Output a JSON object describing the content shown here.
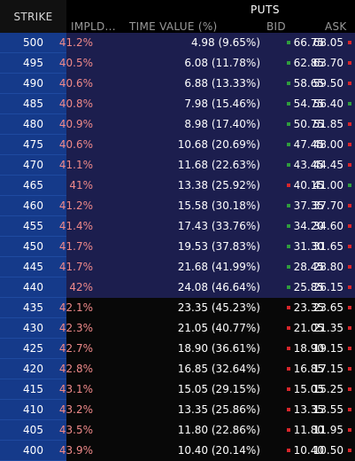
{
  "header": {
    "strike_label": "STRIKE",
    "puts_label": "PUTS",
    "columns": {
      "impld": "IMPLD...",
      "time_value": "TIME VALUE (%)",
      "bid": "BID",
      "ask": "ASK"
    }
  },
  "colors": {
    "strike_bg": "#153a8a",
    "itm_bg": "#1c1e4e",
    "otm_bg": "#080808",
    "iv_text": "#f08a8a",
    "up": "#2f9d3d",
    "down": "#d8262b"
  },
  "rows": [
    {
      "strike": "500",
      "iv": "41.2%",
      "tv": "4.98 (9.65%)",
      "bid": "66.75",
      "ask": "68.05",
      "bid_dir": "up",
      "ask_dir": "down",
      "zone": "itm"
    },
    {
      "strike": "495",
      "iv": "40.5%",
      "tv": "6.08 (11.78%)",
      "bid": "62.85",
      "ask": "63.70",
      "bid_dir": "up",
      "ask_dir": "down",
      "zone": "itm"
    },
    {
      "strike": "490",
      "iv": "40.6%",
      "tv": "6.88 (13.33%)",
      "bid": "58.65",
      "ask": "59.50",
      "bid_dir": "up",
      "ask_dir": "down",
      "zone": "itm"
    },
    {
      "strike": "485",
      "iv": "40.8%",
      "tv": "7.98 (15.46%)",
      "bid": "54.75",
      "ask": "56.40",
      "bid_dir": "up",
      "ask_dir": "up",
      "zone": "itm"
    },
    {
      "strike": "480",
      "iv": "40.9%",
      "tv": "8.98 (17.40%)",
      "bid": "50.75",
      "ask": "51.85",
      "bid_dir": "up",
      "ask_dir": "down",
      "zone": "itm"
    },
    {
      "strike": "475",
      "iv": "40.6%",
      "tv": "10.68 (20.69%)",
      "bid": "47.45",
      "ask": "48.00",
      "bid_dir": "up",
      "ask_dir": "down",
      "zone": "itm"
    },
    {
      "strike": "470",
      "iv": "41.1%",
      "tv": "11.68 (22.63%)",
      "bid": "43.45",
      "ask": "44.45",
      "bid_dir": "up",
      "ask_dir": "down",
      "zone": "itm"
    },
    {
      "strike": "465",
      "iv": "41%",
      "tv": "13.38 (25.92%)",
      "bid": "40.15",
      "ask": "41.00",
      "bid_dir": "down",
      "ask_dir": "up",
      "zone": "itm"
    },
    {
      "strike": "460",
      "iv": "41.2%",
      "tv": "15.58 (30.18%)",
      "bid": "37.35",
      "ask": "37.70",
      "bid_dir": "up",
      "ask_dir": "down",
      "zone": "itm"
    },
    {
      "strike": "455",
      "iv": "41.4%",
      "tv": "17.43 (33.76%)",
      "bid": "34.20",
      "ask": "34.60",
      "bid_dir": "up",
      "ask_dir": "down",
      "zone": "itm"
    },
    {
      "strike": "450",
      "iv": "41.7%",
      "tv": "19.53 (37.83%)",
      "bid": "31.30",
      "ask": "31.65",
      "bid_dir": "up",
      "ask_dir": "down",
      "zone": "itm"
    },
    {
      "strike": "445",
      "iv": "41.7%",
      "tv": "21.68 (41.99%)",
      "bid": "28.45",
      "ask": "28.80",
      "bid_dir": "up",
      "ask_dir": "down",
      "zone": "itm"
    },
    {
      "strike": "440",
      "iv": "42%",
      "tv": "24.08 (46.64%)",
      "bid": "25.85",
      "ask": "26.15",
      "bid_dir": "up",
      "ask_dir": "down",
      "zone": "itm"
    },
    {
      "strike": "435",
      "iv": "42.1%",
      "tv": "23.35 (45.23%)",
      "bid": "23.35",
      "ask": "23.65",
      "bid_dir": "down",
      "ask_dir": "down",
      "zone": "otm"
    },
    {
      "strike": "430",
      "iv": "42.3%",
      "tv": "21.05 (40.77%)",
      "bid": "21.05",
      "ask": "21.35",
      "bid_dir": "down",
      "ask_dir": "down",
      "zone": "otm"
    },
    {
      "strike": "425",
      "iv": "42.7%",
      "tv": "18.90 (36.61%)",
      "bid": "18.90",
      "ask": "19.15",
      "bid_dir": "down",
      "ask_dir": "down",
      "zone": "otm"
    },
    {
      "strike": "420",
      "iv": "42.8%",
      "tv": "16.85 (32.64%)",
      "bid": "16.85",
      "ask": "17.15",
      "bid_dir": "down",
      "ask_dir": "down",
      "zone": "otm"
    },
    {
      "strike": "415",
      "iv": "43.1%",
      "tv": "15.05 (29.15%)",
      "bid": "15.05",
      "ask": "15.25",
      "bid_dir": "down",
      "ask_dir": "down",
      "zone": "otm"
    },
    {
      "strike": "410",
      "iv": "43.2%",
      "tv": "13.35 (25.86%)",
      "bid": "13.35",
      "ask": "13.55",
      "bid_dir": "down",
      "ask_dir": "down",
      "zone": "otm"
    },
    {
      "strike": "405",
      "iv": "43.5%",
      "tv": "11.80 (22.86%)",
      "bid": "11.80",
      "ask": "11.95",
      "bid_dir": "down",
      "ask_dir": "down",
      "zone": "otm"
    },
    {
      "strike": "400",
      "iv": "43.9%",
      "tv": "10.40 (20.14%)",
      "bid": "10.40",
      "ask": "10.50",
      "bid_dir": "down",
      "ask_dir": "down",
      "zone": "otm"
    }
  ]
}
